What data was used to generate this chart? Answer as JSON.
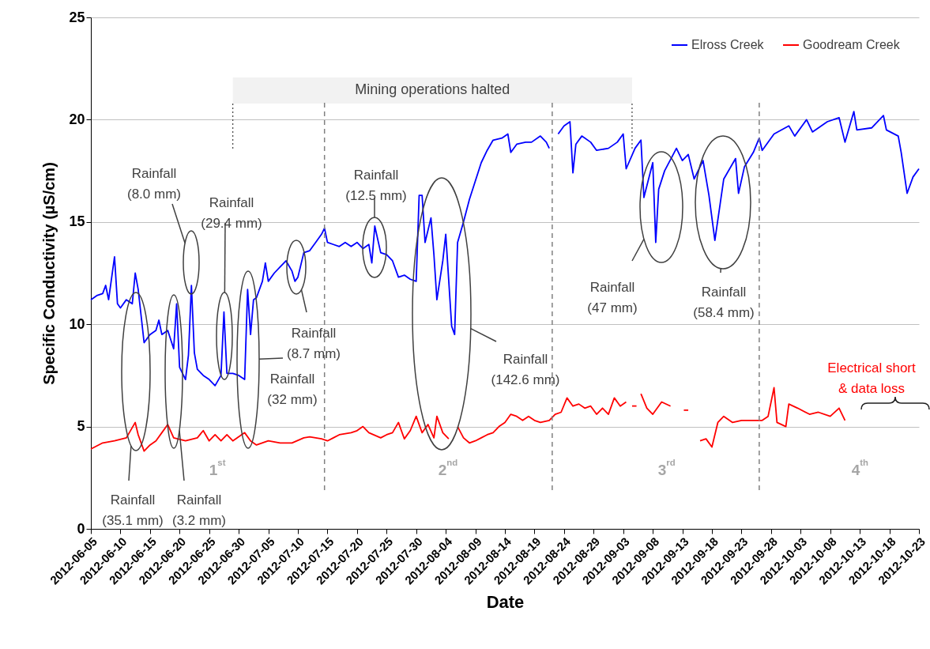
{
  "chart_data": {
    "type": "line",
    "xlabel": "Date",
    "ylabel": "Specific Conductivity (µS/cm)",
    "xlim": [
      "2012-06-05",
      "2012-10-23"
    ],
    "xticks": [
      "2012-06-05",
      "2012-06-10",
      "2012-06-15",
      "2012-06-20",
      "2012-06-25",
      "2012-06-30",
      "2012-07-05",
      "2012-07-10",
      "2012-07-15",
      "2012-07-20",
      "2012-07-25",
      "2012-07-30",
      "2012-08-04",
      "2012-08-09",
      "2012-08-14",
      "2012-08-19",
      "2012-08-24",
      "2012-08-29",
      "2012-09-03",
      "2012-09-08",
      "2012-09-13",
      "2012-09-18",
      "2012-09-23",
      "2012-09-28",
      "2012-10-03",
      "2012-10-08",
      "2012-10-13",
      "2012-10-18",
      "2012-10-23"
    ],
    "ylim": [
      0,
      25
    ],
    "yticks": [
      0,
      5,
      10,
      15,
      20,
      25
    ],
    "grid": "y",
    "legend": "top right",
    "series": [
      {
        "name": "Elross Creek",
        "color": "#0000ff",
        "x": [
          "2012-06-05",
          "2012-06-06",
          "2012-06-07",
          "2012-06-07T12:00",
          "2012-06-08",
          "2012-06-09",
          "2012-06-09T12:00",
          "2012-06-10",
          "2012-06-11",
          "2012-06-12",
          "2012-06-12T12:00",
          "2012-06-13",
          "2012-06-14",
          "2012-06-15",
          "2012-06-16",
          "2012-06-16T12:00",
          "2012-06-17",
          "2012-06-18",
          "2012-06-19",
          "2012-06-19T12:00",
          "2012-06-20",
          "2012-06-21",
          "2012-06-21T12:00",
          "2012-06-22",
          "2012-06-22T12:00",
          "2012-06-23",
          "2012-06-24",
          "2012-06-25",
          "2012-06-26",
          "2012-06-27",
          "2012-06-27T12:00",
          "2012-06-28",
          "2012-06-29",
          "2012-06-30",
          "2012-07-01",
          "2012-07-01T12:00",
          "2012-07-02",
          "2012-07-02T12:00",
          "2012-07-03",
          "2012-07-04",
          "2012-07-04T12:00",
          "2012-07-05",
          "2012-07-06",
          "2012-07-07",
          "2012-07-08",
          "2012-07-09",
          "2012-07-09T12:00",
          "2012-07-10",
          "2012-07-11",
          "2012-07-12",
          "2012-07-13",
          "2012-07-14",
          "2012-07-14T12:00",
          "2012-07-15",
          "2012-07-16",
          "2012-07-17",
          "2012-07-18",
          "2012-07-19",
          "2012-07-20",
          "2012-07-21",
          "2012-07-22",
          "2012-07-22T12:00",
          "2012-07-23",
          "2012-07-24",
          "2012-07-25",
          "2012-07-26",
          "2012-07-27",
          "2012-07-28",
          "2012-07-29",
          "2012-07-30",
          "2012-07-30T12:00",
          "2012-07-31",
          "2012-07-31T12:00",
          "2012-08-01T12:00",
          "2012-08-02",
          "2012-08-02T12:00",
          "2012-08-03T12:00",
          "2012-08-04",
          "2012-08-05",
          "2012-08-05T12:00",
          "2012-08-06",
          "2012-08-07",
          "2012-08-08",
          "2012-08-09",
          "2012-08-10",
          "2012-08-11",
          "2012-08-12",
          "2012-08-13T12:00",
          "2012-08-14T12:00",
          "2012-08-15",
          "2012-08-16",
          "2012-08-17T12:00",
          "2012-08-18T12:00",
          "2012-08-20",
          "2012-08-21",
          "2012-08-21T12:00",
          "2012-08-22",
          "2012-08-23",
          "2012-08-24",
          "2012-08-25",
          "2012-08-25T12:00",
          "2012-08-26",
          "2012-08-27",
          "2012-08-28T12:00",
          "2012-08-29T12:00",
          "2012-08-31T12:00",
          "2012-09-02",
          "2012-09-03",
          "2012-09-03T12:00",
          "2012-09-05",
          "2012-09-06",
          "2012-09-06T12:00",
          "2012-09-08",
          "2012-09-08T12:00",
          "2012-09-09",
          "2012-09-10",
          "2012-09-12",
          "2012-09-13",
          "2012-09-14",
          "2012-09-15",
          "2012-09-16T12:00",
          "2012-09-17T12:00",
          "2012-09-18T12:00",
          "2012-09-20",
          "2012-09-22",
          "2012-09-22T12:00",
          "2012-09-23T12:00",
          "2012-09-25",
          "2012-09-26",
          "2012-09-26T12:00",
          "2012-09-28T12:00",
          "2012-10-01",
          "2012-10-02",
          "2012-10-04",
          "2012-10-05",
          "2012-10-07T12:00",
          "2012-10-09T12:00",
          "2012-10-10T12:00",
          "2012-10-12",
          "2012-10-12T12:00",
          "2012-10-15",
          "2012-10-17",
          "2012-10-17T12:00",
          "2012-10-19T12:00",
          "2012-10-20",
          "2012-10-21",
          "2012-10-22",
          "2012-10-23"
        ],
        "values": [
          11.2,
          11.4,
          11.5,
          11.9,
          11.2,
          13.3,
          11.0,
          10.8,
          11.2,
          11.0,
          12.5,
          11.7,
          9.1,
          9.5,
          9.7,
          10.2,
          9.5,
          9.7,
          8.8,
          11.0,
          7.9,
          7.3,
          8.5,
          11.9,
          8.6,
          7.8,
          7.5,
          7.3,
          7.0,
          7.5,
          10.6,
          7.6,
          7.6,
          7.5,
          7.3,
          11.7,
          9.5,
          11.2,
          11.3,
          12.1,
          13.0,
          12.1,
          12.5,
          12.8,
          13.1,
          12.6,
          12.1,
          12.3,
          13.5,
          13.6,
          14.0,
          14.4,
          14.7,
          14.0,
          13.9,
          13.8,
          14.0,
          13.8,
          14.0,
          13.7,
          13.9,
          13.0,
          14.8,
          13.5,
          13.4,
          13.1,
          12.3,
          12.4,
          12.2,
          12.1,
          16.3,
          16.3,
          14.0,
          15.2,
          13.4,
          11.2,
          13.1,
          14.4,
          9.9,
          9.5,
          14.0,
          15.0,
          16.1,
          17.0,
          17.9,
          18.5,
          19.0,
          19.1,
          19.3,
          18.4,
          18.8,
          18.9,
          18.9,
          19.2,
          18.9,
          18.6,
          null,
          19.3,
          19.7,
          19.9,
          17.4,
          18.8,
          19.2,
          18.9,
          18.5,
          18.6,
          18.9,
          19.3,
          17.6,
          18.6,
          19.0,
          16.2,
          17.9,
          14.0,
          16.6,
          17.5,
          18.6,
          18.0,
          18.3,
          17.1,
          18.0,
          16.3,
          14.1,
          17.1,
          18.1,
          16.4,
          17.7,
          18.4,
          19.1,
          18.5,
          19.3,
          19.7,
          19.2,
          20.0,
          19.4,
          19.9,
          20.1,
          18.9,
          20.4,
          19.5,
          19.6,
          20.2,
          19.5,
          19.2,
          18.4,
          16.4,
          17.2,
          17.6
        ]
      },
      {
        "name": "Goodream Creek",
        "color": "#ff0000",
        "x": [
          "2012-06-05",
          "2012-06-07",
          "2012-06-09",
          "2012-06-11",
          "2012-06-12T12:00",
          "2012-06-13",
          "2012-06-14",
          "2012-06-15",
          "2012-06-16",
          "2012-06-17",
          "2012-06-18",
          "2012-06-19",
          "2012-06-21",
          "2012-06-23",
          "2012-06-24",
          "2012-06-25",
          "2012-06-26",
          "2012-06-27",
          "2012-06-28",
          "2012-06-29",
          "2012-07-01",
          "2012-07-02",
          "2012-07-03",
          "2012-07-05",
          "2012-07-07",
          "2012-07-09",
          "2012-07-11",
          "2012-07-12",
          "2012-07-14",
          "2012-07-15",
          "2012-07-16",
          "2012-07-17",
          "2012-07-19",
          "2012-07-20",
          "2012-07-21",
          "2012-07-22",
          "2012-07-24",
          "2012-07-25",
          "2012-07-26",
          "2012-07-27",
          "2012-07-28",
          "2012-07-29",
          "2012-07-30",
          "2012-07-31",
          "2012-08-01",
          "2012-08-02",
          "2012-08-02T12:00",
          "2012-08-03T12:00",
          "2012-08-04T12:00",
          "2012-08-05",
          "2012-08-06",
          "2012-08-07",
          "2012-08-08",
          "2012-08-09",
          "2012-08-10",
          "2012-08-11",
          "2012-08-12",
          "2012-08-13",
          "2012-08-14",
          "2012-08-15",
          "2012-08-16",
          "2012-08-17",
          "2012-08-18",
          "2012-08-19",
          "2012-08-20",
          "2012-08-21T12:00",
          "2012-08-22T12:00",
          "2012-08-23T12:00",
          "2012-08-24T12:00",
          "2012-08-25T12:00",
          "2012-08-26T12:00",
          "2012-08-27T12:00",
          "2012-08-28T12:00",
          "2012-08-29T12:00",
          "2012-08-30T12:00",
          "2012-08-31T12:00",
          "2012-09-01T12:00",
          "2012-09-02T12:00",
          "2012-09-03T12:00",
          "2012-09-04",
          "2012-09-04T12:00",
          "2012-09-05T06:00",
          "2012-09-05T12:00",
          "2012-09-06",
          "2012-09-07",
          "2012-09-08",
          "2012-09-09T12:00",
          "2012-09-11",
          "2012-09-12",
          "2012-09-13T06:00",
          "2012-09-14",
          "2012-09-15",
          "2012-09-16",
          "2012-09-17",
          "2012-09-18",
          "2012-09-19",
          "2012-09-20",
          "2012-09-21T12:00",
          "2012-09-23",
          "2012-09-24T12:00",
          "2012-09-26T12:00",
          "2012-09-27T12:00",
          "2012-09-28T12:00",
          "2012-09-29",
          "2012-09-30T12:00",
          "2012-10-01",
          "2012-10-02T12:00",
          "2012-10-04T12:00",
          "2012-10-06",
          "2012-10-08",
          "2012-10-09T12:00",
          "2012-10-10T12:00"
        ],
        "values": [
          3.9,
          4.2,
          4.3,
          4.45,
          5.2,
          4.6,
          3.8,
          4.1,
          4.3,
          4.7,
          5.1,
          4.45,
          4.3,
          4.45,
          4.8,
          4.3,
          4.6,
          4.3,
          4.6,
          4.3,
          4.7,
          4.3,
          4.1,
          4.3,
          4.2,
          4.2,
          4.45,
          4.5,
          4.4,
          4.3,
          4.45,
          4.6,
          4.7,
          4.8,
          5.0,
          4.7,
          4.45,
          4.6,
          4.7,
          5.2,
          4.4,
          4.8,
          5.5,
          4.7,
          5.1,
          4.45,
          5.5,
          4.7,
          4.4,
          null,
          5.0,
          4.45,
          4.2,
          4.3,
          4.45,
          4.6,
          4.7,
          5.0,
          5.2,
          5.6,
          5.5,
          5.3,
          5.5,
          5.3,
          5.2,
          5.3,
          5.6,
          5.7,
          6.4,
          6.0,
          6.1,
          5.9,
          6.0,
          5.6,
          5.9,
          5.6,
          6.4,
          6.0,
          6.2,
          null,
          6.0,
          6.0,
          null,
          6.6,
          5.9,
          5.6,
          6.2,
          6.0,
          null,
          5.8,
          5.8,
          null,
          4.3,
          4.4,
          4.0,
          5.2,
          5.5,
          5.2,
          5.3,
          5.3,
          5.3,
          5.5,
          6.9,
          5.2,
          5.0,
          6.1,
          5.9,
          5.6,
          5.7,
          5.5,
          5.9,
          5.3
        ]
      }
    ],
    "ref_lines": [
      {
        "axis": "x",
        "value": "2012-06-29",
        "color": "#404040",
        "line_style": "dotted"
      },
      {
        "axis": "x",
        "value": "2012-09-04T12:00",
        "color": "#404040",
        "line_style": "dotted"
      },
      {
        "axis": "x",
        "value": "2012-07-14T12:00",
        "color": "#808080",
        "line_style": "dashed"
      },
      {
        "axis": "x",
        "value": "2012-08-22",
        "color": "#808080",
        "line_style": "dashed"
      },
      {
        "axis": "x",
        "value": "2012-09-26",
        "color": "#808080",
        "line_style": "dashed"
      }
    ],
    "bands": [
      {
        "axis": "x",
        "from": "2012-06-29",
        "to": "2012-09-04T12:00",
        "label": "Mining operations halted",
        "color": "#f2f2f2"
      }
    ],
    "annotations": [
      "Rainfall\n(35.1 mm)",
      "Rainfall\n(3.2 mm)",
      "Rainfall\n(8.0 mm)",
      "Rainfall\n(29.4 mm)",
      "Rainfall\n(32 mm)",
      "Rainfall\n(8.7 mm)",
      "Rainfall\n(12.5 mm)",
      "Rainfall\n(142.6 mm)",
      "Rainfall\n(47 mm)",
      "Rainfall\n(58.4 mm)",
      "1$^{st}$",
      "2$^{nd}$",
      "3$^{rd}$",
      "4$^{th}$",
      "Electrical short\n& data loss"
    ]
  }
}
